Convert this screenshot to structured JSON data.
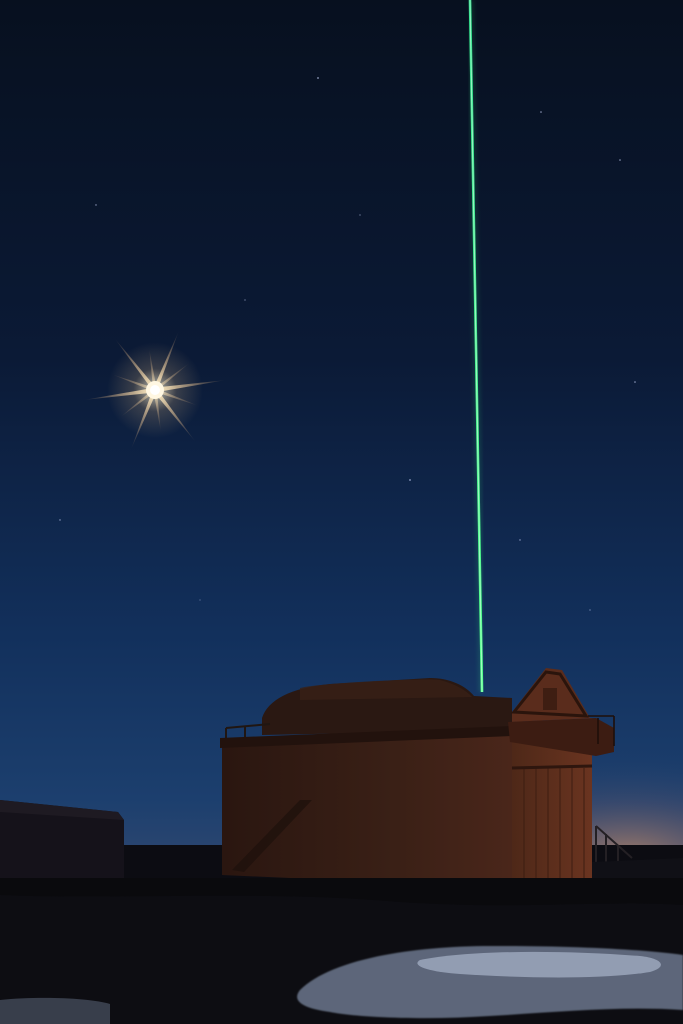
{
  "scene": {
    "subject": "night-sky-laser-observatory",
    "colors": {
      "sky_top": "#07101f",
      "sky_mid": "#0f2448",
      "sky_low": "#1c3c6c",
      "horizon_glow": "#c08a68",
      "laser": "#3dff8a",
      "moon": "#fff6dc",
      "building": "#3a1e14",
      "building_lit": "#5a2c1c",
      "ground": "#0a0a0d",
      "snow": "#b9c6df"
    },
    "elements": [
      "sky",
      "stars",
      "moon-starburst",
      "laser-beam",
      "observatory-building",
      "annex-building",
      "ground",
      "snow-patches"
    ]
  }
}
